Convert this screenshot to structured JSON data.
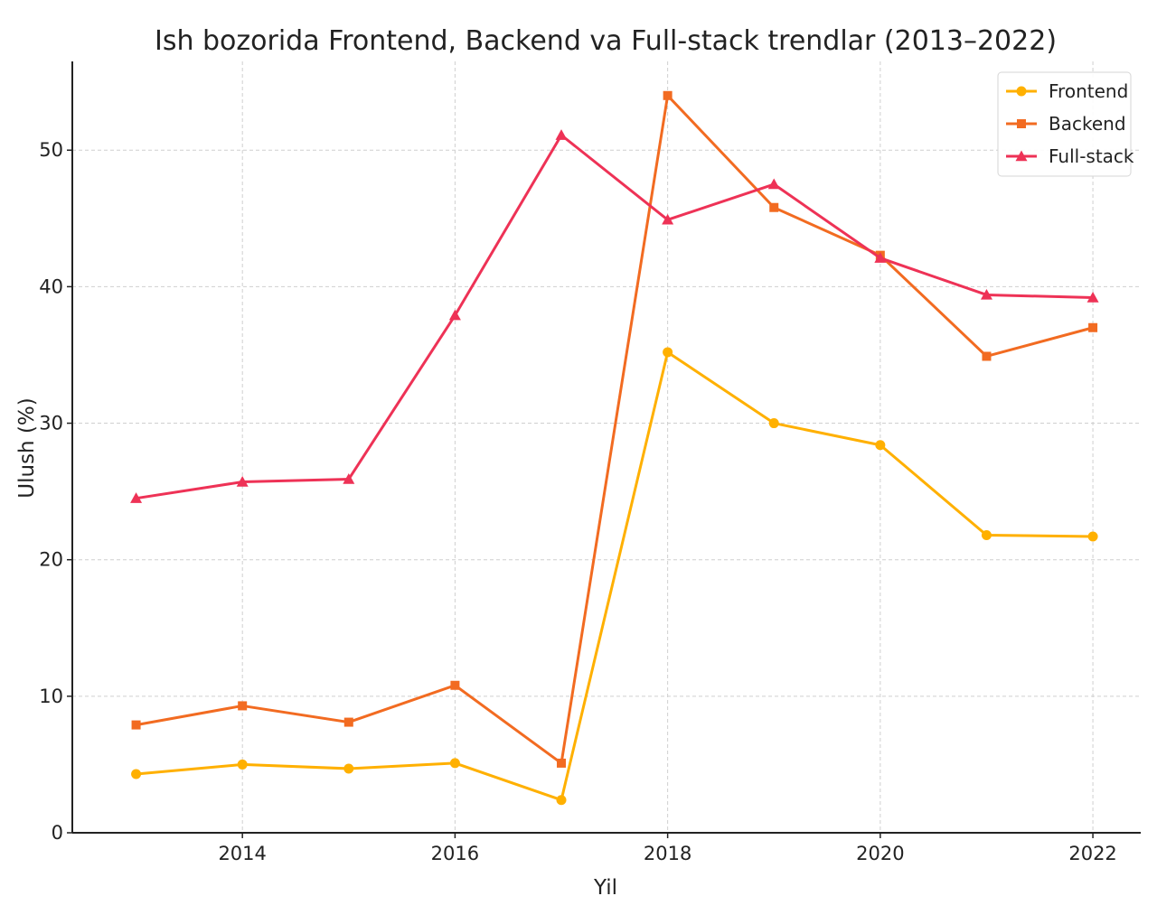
{
  "chart_data": {
    "type": "line",
    "title": "Ish bozorida Frontend, Backend va Full-stack trendlar (2013–2022)",
    "xlabel": "Yil",
    "ylabel": "Ulush (%)",
    "x": [
      2013,
      2014,
      2015,
      2016,
      2017,
      2018,
      2019,
      2020,
      2021,
      2022
    ],
    "x_ticks": [
      "2014",
      "2016",
      "2018",
      "2020",
      "2022"
    ],
    "y_ticks": [
      "0",
      "10",
      "20",
      "30",
      "40",
      "50"
    ],
    "xlim": [
      2012.4,
      2022.45
    ],
    "ylim": [
      0,
      56.5
    ],
    "grid": true,
    "legend_position": "top-right",
    "series": [
      {
        "name": "Frontend",
        "color": "#FFB000",
        "marker": "circle",
        "values": [
          4.3,
          5.0,
          4.7,
          5.1,
          2.4,
          35.2,
          30.0,
          28.4,
          21.8,
          21.7
        ]
      },
      {
        "name": "Backend",
        "color": "#F26B21",
        "marker": "square",
        "values": [
          7.9,
          9.3,
          8.1,
          10.8,
          5.1,
          54.0,
          45.8,
          42.3,
          34.9,
          37.0
        ]
      },
      {
        "name": "Full-stack",
        "color": "#EE3256",
        "marker": "triangle",
        "values": [
          24.5,
          25.7,
          25.9,
          37.9,
          51.1,
          44.9,
          47.5,
          42.1,
          39.4,
          39.2
        ]
      }
    ]
  }
}
